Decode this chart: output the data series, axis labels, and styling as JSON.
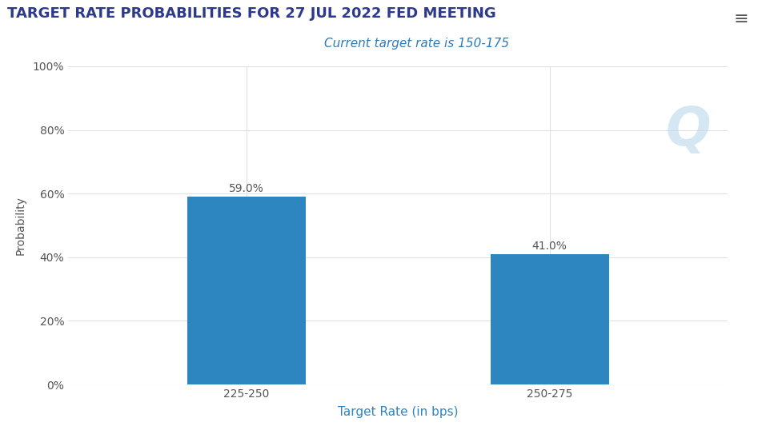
{
  "title": "TARGET RATE PROBABILITIES FOR 27 JUL 2022 FED MEETING",
  "subtitle": "Current target rate is 150-175",
  "subtitle_color": "#2b7bba",
  "title_color": "#2d3a8c",
  "categories": [
    "225-250",
    "250-275"
  ],
  "values": [
    59.0,
    41.0
  ],
  "bar_color": "#2e86c1",
  "xlabel": "Target Rate (in bps)",
  "ylabel": "Probability",
  "xlabel_color": "#2e86c1",
  "ylabel_color": "#555555",
  "ylim": [
    0,
    100
  ],
  "yticks": [
    0,
    20,
    40,
    60,
    80,
    100
  ],
  "ytick_labels": [
    "0%",
    "20%",
    "40%",
    "60%",
    "80%",
    "100%"
  ],
  "background_color": "#ffffff",
  "plot_bg_color": "#ffffff",
  "grid_color": "#e0e0e0",
  "bar_label_color": "#555555",
  "bar_label_fontsize": 10,
  "title_fontsize": 13,
  "subtitle_fontsize": 11,
  "xlabel_fontsize": 11,
  "ylabel_fontsize": 10,
  "tick_label_fontsize": 10,
  "bar_width": 0.18,
  "x_positions": [
    0.27,
    0.73
  ],
  "xlim": [
    0,
    1
  ]
}
